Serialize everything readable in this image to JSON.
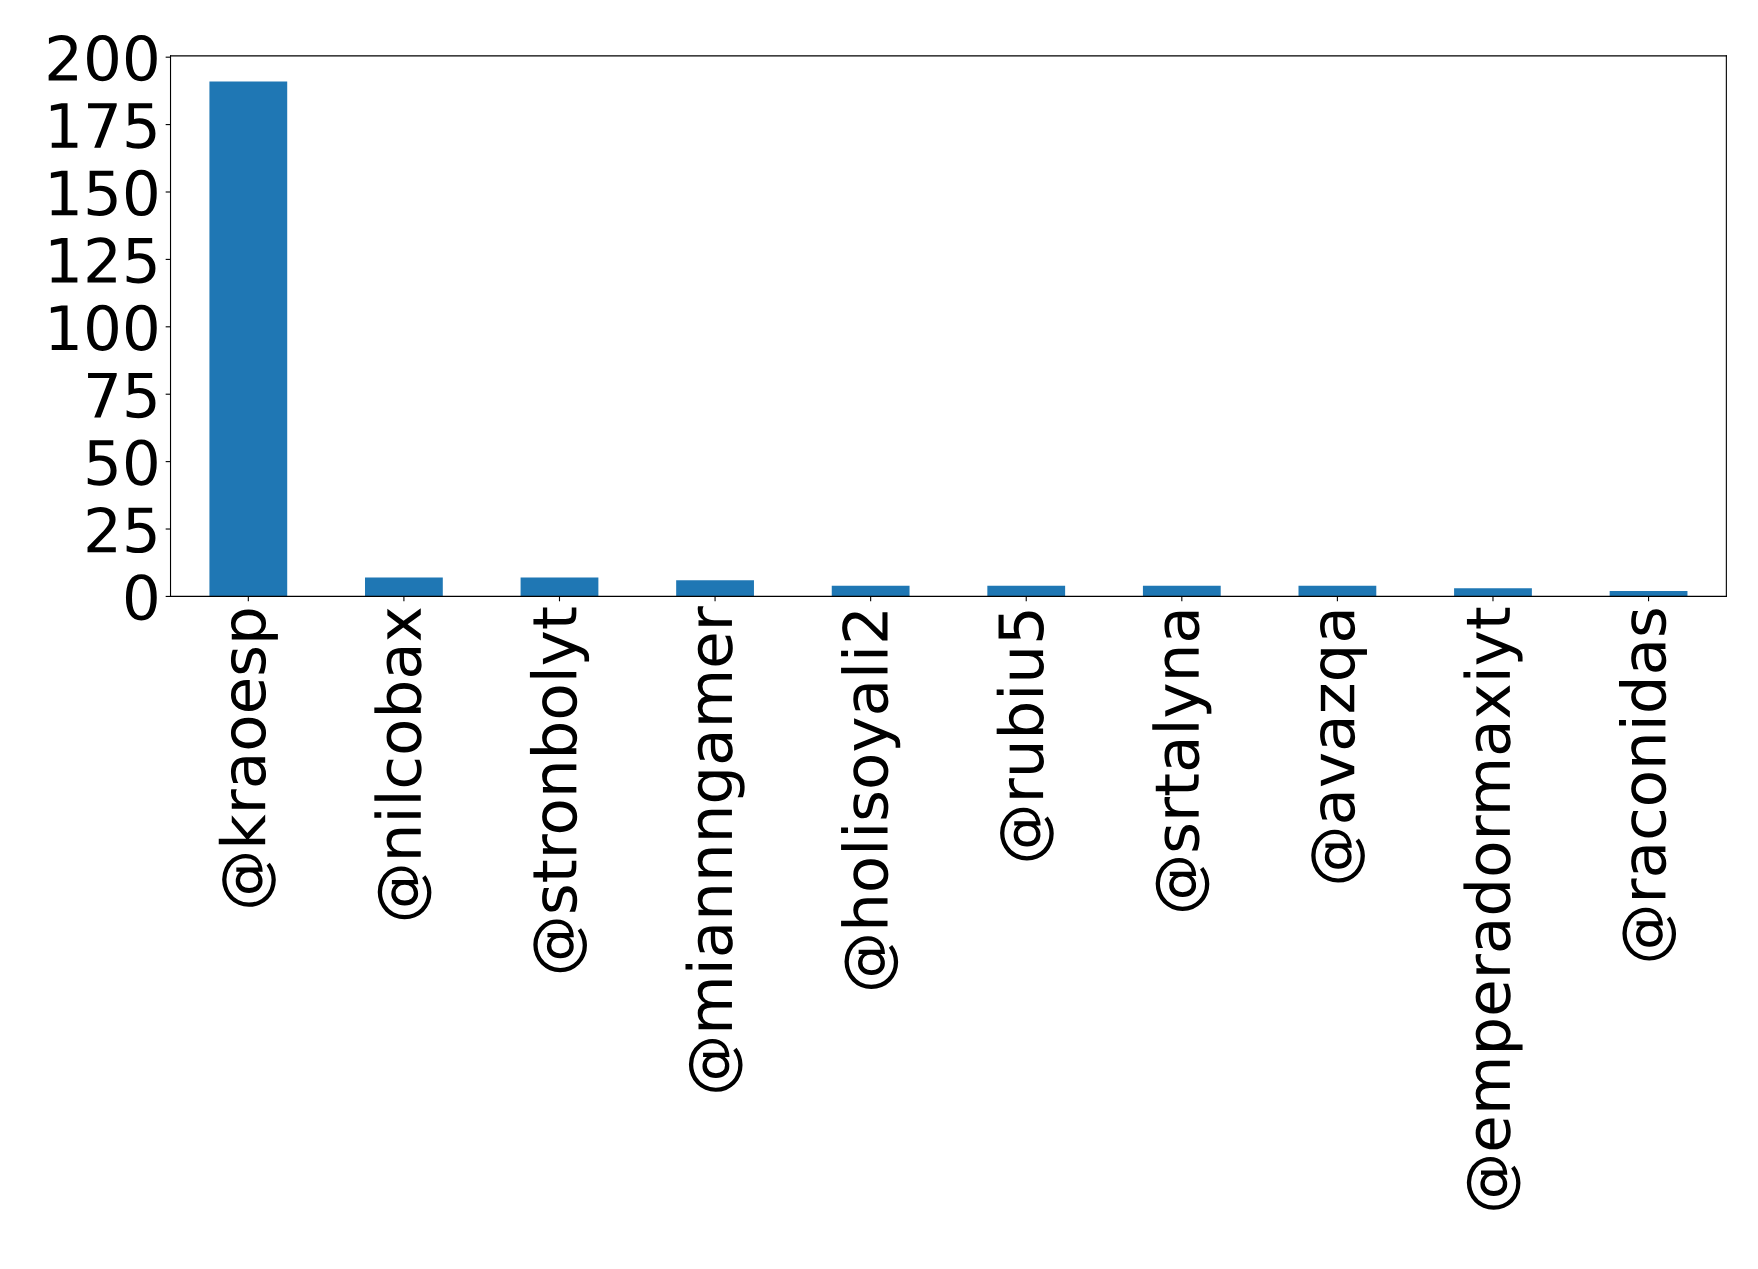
{
  "chart_data": {
    "type": "bar",
    "categories": [
      "@kraoesp",
      "@nilcobax",
      "@stronbolyt",
      "@miannngamer",
      "@holisoyali2",
      "@rubiu5",
      "@srtalyna",
      "@avazqa",
      "@emperadormaxiyt",
      "@raconidas"
    ],
    "values": [
      191,
      7,
      7,
      6,
      4,
      4,
      4,
      4,
      3,
      2
    ],
    "color": "#1f77b4",
    "ylim": [
      0,
      200.5
    ],
    "yticks": [
      0,
      25,
      50,
      75,
      100,
      125,
      150,
      175,
      200
    ],
    "grid": false
  }
}
